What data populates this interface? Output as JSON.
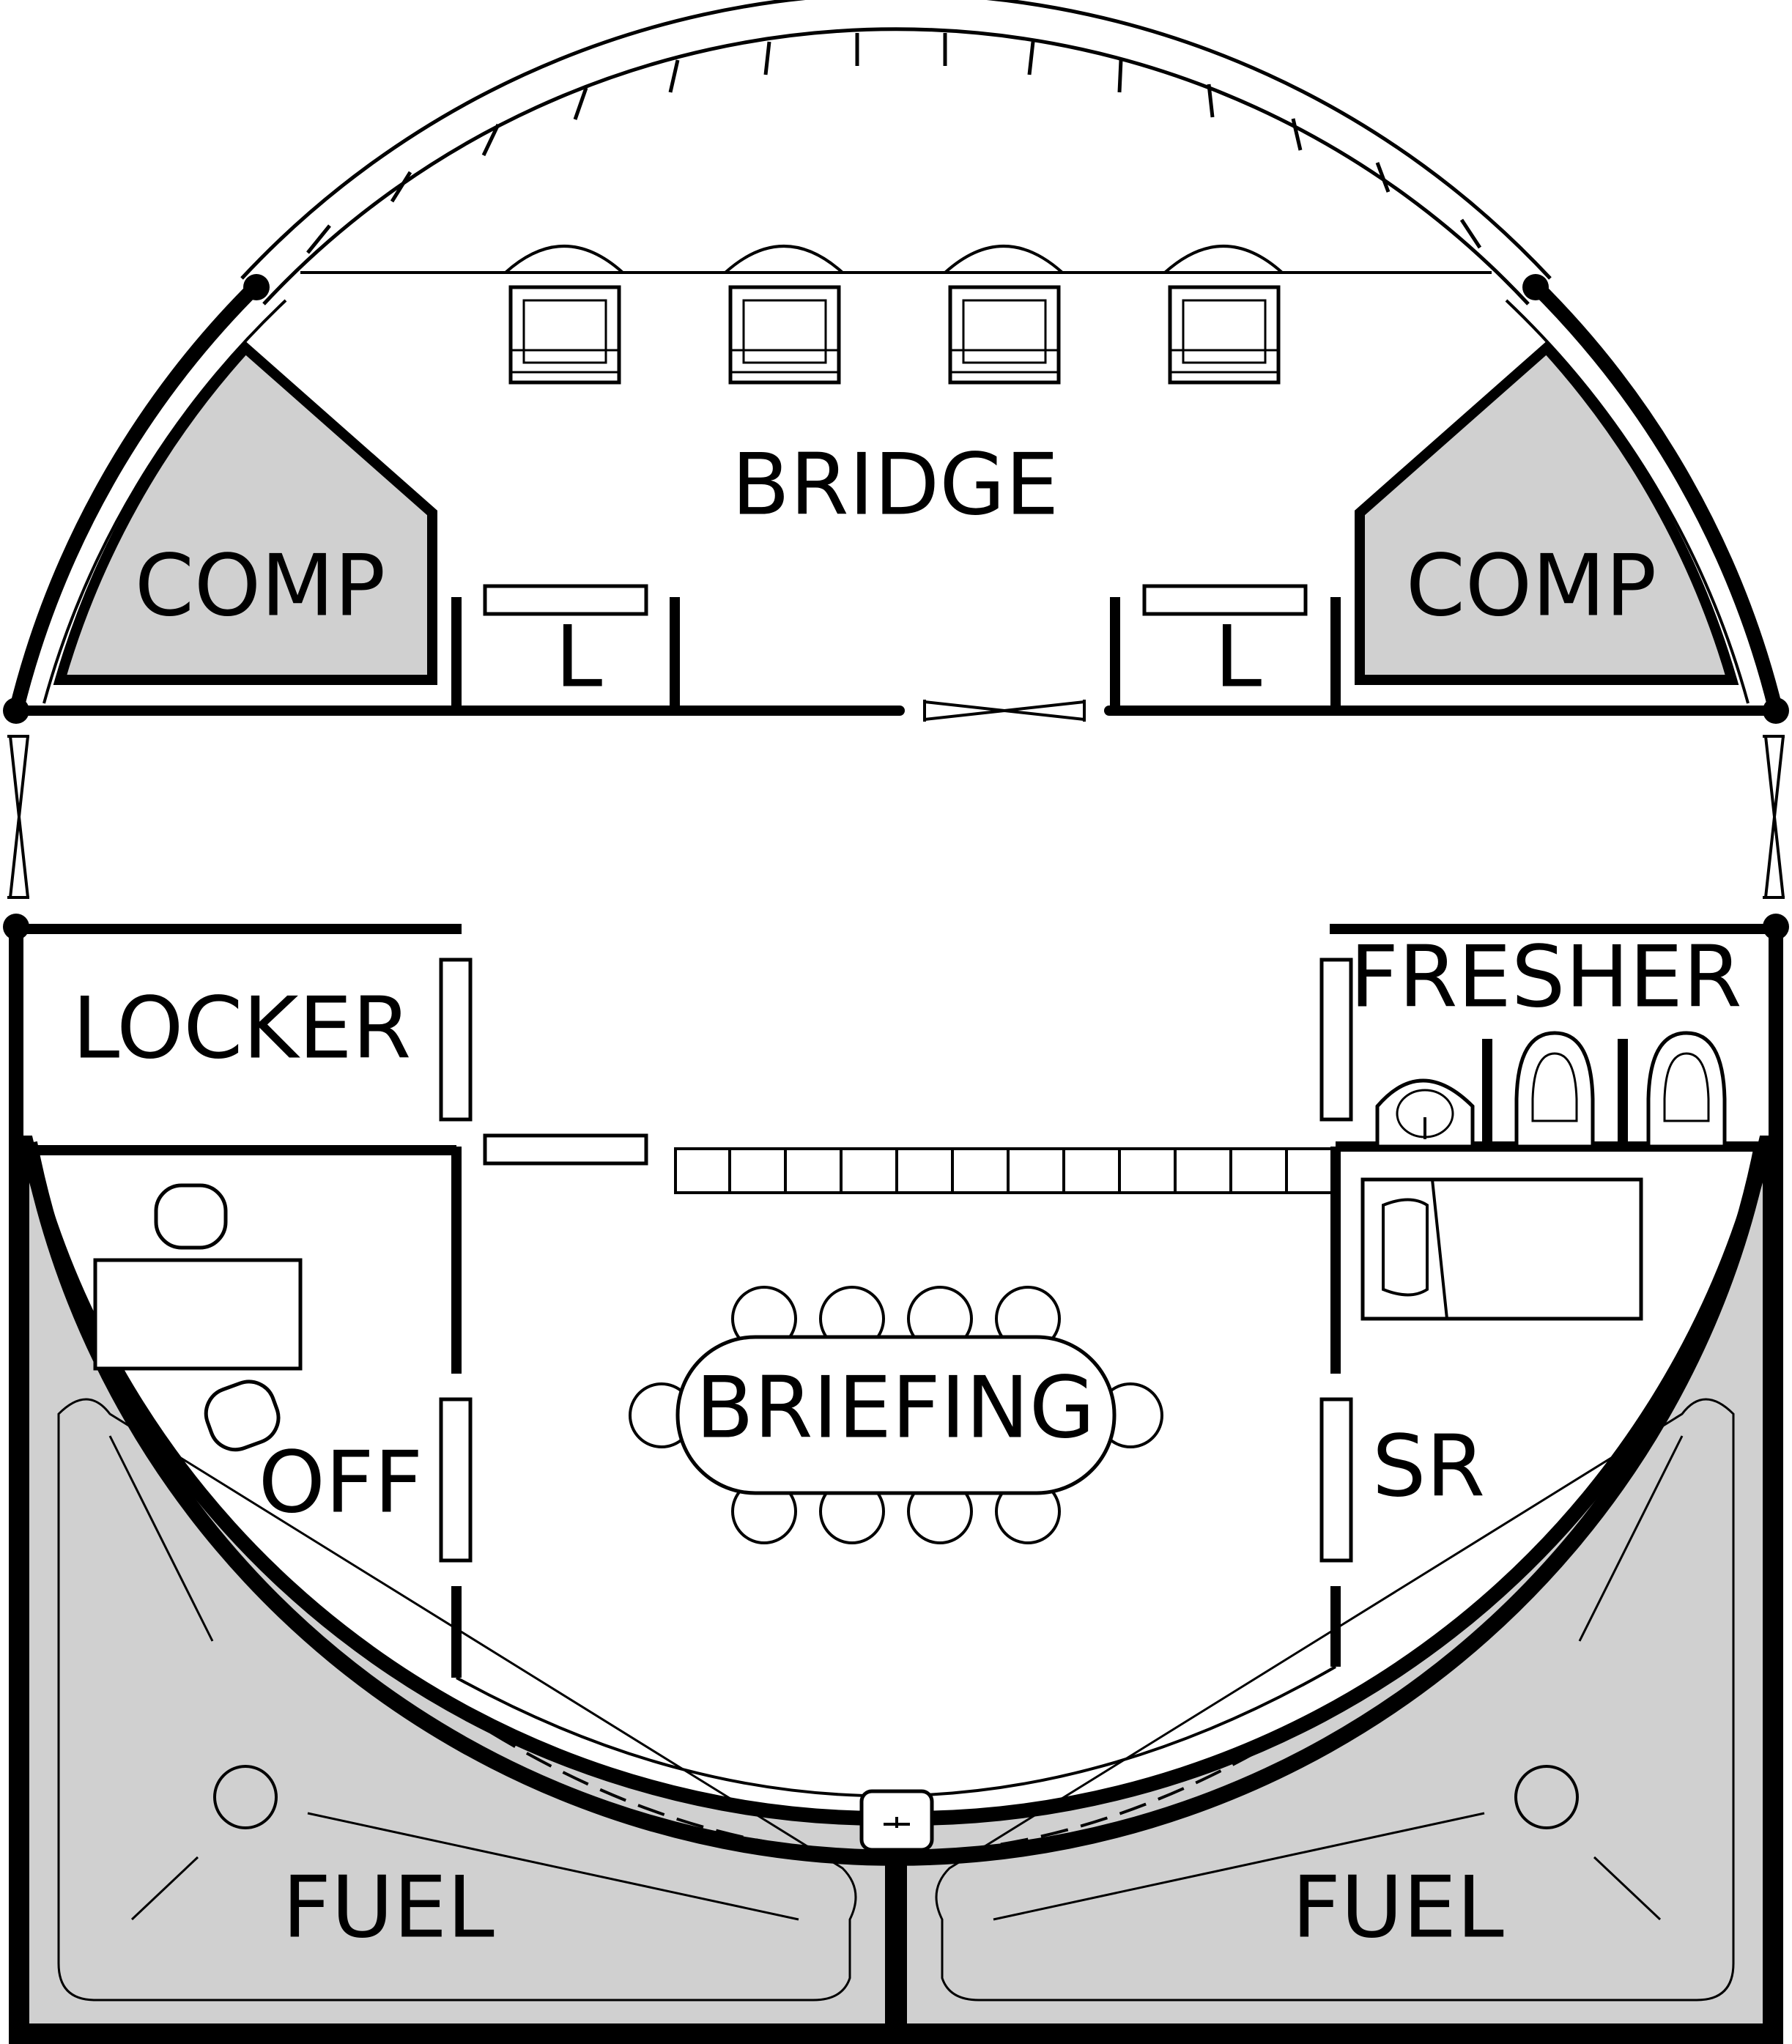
{
  "diagram": {
    "colors": {
      "wall": "#000000",
      "background": "#ffffff",
      "shaded_area": "#d0d0d0"
    },
    "rooms": {
      "bridge": "BRIDGE",
      "comp_left": "COMP",
      "comp_right": "COMP",
      "l_left": "L",
      "l_right": "L",
      "locker": "LOCKER",
      "fresher": "FRESHER",
      "off": "OFF",
      "briefing": "BRIEFING",
      "sr": "SR",
      "fuel_left": "FUEL",
      "fuel_right": "FUEL"
    },
    "icons": {
      "seat": "armchair",
      "chair": "round-chair",
      "toilet": "toilet",
      "sink": "sink",
      "bed": "bed",
      "hatch": "floor-hatch",
      "door": "sliding-door"
    }
  }
}
